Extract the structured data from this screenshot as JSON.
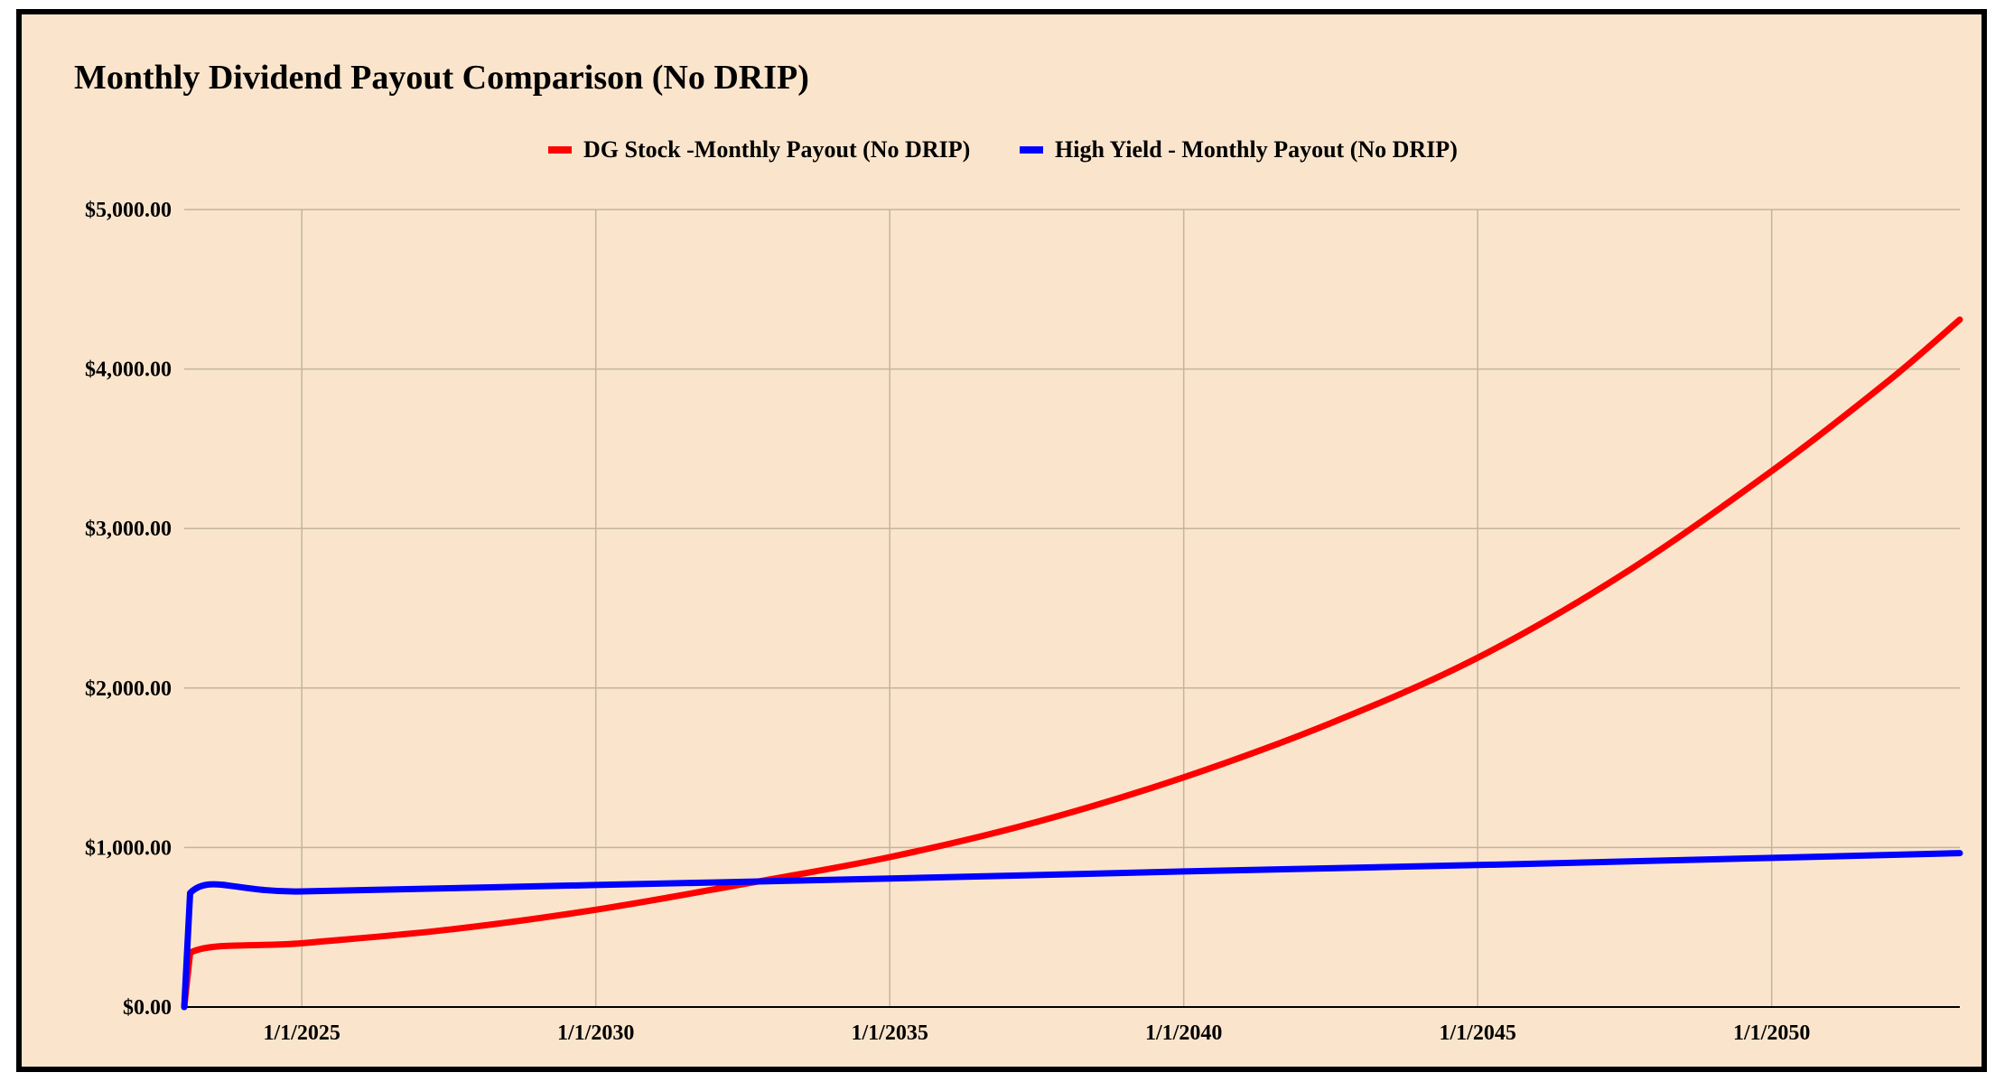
{
  "chart_data": {
    "type": "line",
    "title": "Monthly Dividend Payout Comparison (No DRIP)",
    "xlabel": "",
    "ylabel": "",
    "x_tick_labels": [
      "1/1/2025",
      "1/1/2030",
      "1/1/2035",
      "1/1/2040",
      "1/1/2045",
      "1/1/2050"
    ],
    "x_tick_values": [
      2025,
      2030,
      2035,
      2040,
      2045,
      2050
    ],
    "xlim": [
      2023,
      2053.2
    ],
    "y_tick_labels": [
      "$0.00",
      "$1,000.00",
      "$2,000.00",
      "$3,000.00",
      "$4,000.00",
      "$5,000.00"
    ],
    "y_tick_values": [
      0,
      1000,
      2000,
      3000,
      4000,
      5000
    ],
    "ylim": [
      0,
      5000
    ],
    "grid": true,
    "legend_position": "top-center",
    "series": [
      {
        "name": "DG Stock -Monthly Payout (No DRIP)",
        "color": "#ff0000",
        "x": [
          2023.0,
          2023.1,
          2025,
          2027.5,
          2030,
          2032.5,
          2035,
          2037.5,
          2040,
          2042.5,
          2045,
          2047.5,
          2050,
          2052,
          2053.2
        ],
        "values": [
          0,
          340,
          400,
          485,
          610,
          770,
          940,
          1160,
          1440,
          1780,
          2190,
          2720,
          3360,
          3930,
          4310
        ]
      },
      {
        "name": "High Yield - Monthly Payout (No DRIP)",
        "color": "#0000ff",
        "x": [
          2023.0,
          2023.1,
          2025,
          2030,
          2035,
          2040,
          2045,
          2050,
          2053.2
        ],
        "values": [
          0,
          715,
          725,
          765,
          805,
          850,
          890,
          935,
          965
        ]
      }
    ]
  }
}
